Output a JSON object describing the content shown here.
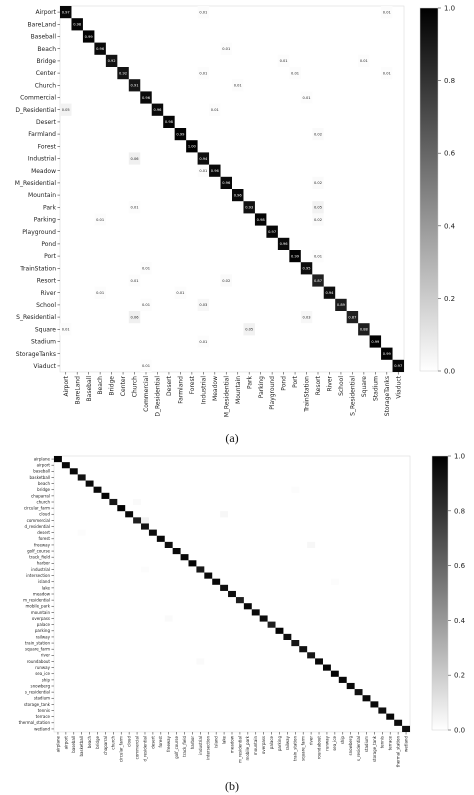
{
  "panel_labels": [
    "(a)",
    "(b)"
  ],
  "chart_data": [
    {
      "type": "heatmap",
      "caption": "(a)",
      "rows": [
        "Airport",
        "BareLand",
        "Baseball",
        "Beach",
        "Bridge",
        "Center",
        "Church",
        "Commercial",
        "D_Residential",
        "Desert",
        "Farmland",
        "Forest",
        "Industrial",
        "Meadow",
        "M_Residential",
        "Mountain",
        "Park",
        "Parking",
        "Playground",
        "Pond",
        "Port",
        "TrainStation",
        "Resort",
        "River",
        "School",
        "S_Residential",
        "Square",
        "Stadium",
        "StorageTanks",
        "Viaduct"
      ],
      "columns": [
        "Airport",
        "BareLand",
        "Baseball",
        "Beach",
        "Bridge",
        "Center",
        "Church",
        "Commercial",
        "D_Residential",
        "Desert",
        "Farmland",
        "Forest",
        "Industrial",
        "Meadow",
        "M_Residential",
        "Mountain",
        "Park",
        "Parking",
        "Playground",
        "Pond",
        "Port",
        "TrainStation",
        "Resort",
        "River",
        "School",
        "S_Residential",
        "Square",
        "Stadium",
        "StorageTanks",
        "Viaduct"
      ],
      "diagonal": [
        0.97,
        0.98,
        0.99,
        0.96,
        0.92,
        0.92,
        0.91,
        0.96,
        0.96,
        0.98,
        0.99,
        1.0,
        0.94,
        0.96,
        0.96,
        0.96,
        0.93,
        0.98,
        0.97,
        0.96,
        0.99,
        0.95,
        0.87,
        0.94,
        0.89,
        0.87,
        0.88,
        0.99,
        0.99,
        0.97
      ],
      "off_diagonal": [
        [
          0,
          12,
          0.01
        ],
        [
          0,
          28,
          0.01
        ],
        [
          3,
          14,
          0.01
        ],
        [
          4,
          19,
          0.01
        ],
        [
          4,
          26,
          0.01
        ],
        [
          5,
          12,
          0.01
        ],
        [
          5,
          20,
          0.01
        ],
        [
          5,
          28,
          0.01
        ],
        [
          6,
          15,
          0.01
        ],
        [
          7,
          21,
          0.01
        ],
        [
          8,
          0,
          0.05
        ],
        [
          8,
          13,
          0.01
        ],
        [
          10,
          22,
          0.02
        ],
        [
          12,
          6,
          0.06
        ],
        [
          13,
          12,
          0.01
        ],
        [
          14,
          22,
          0.02
        ],
        [
          16,
          6,
          0.01
        ],
        [
          16,
          22,
          0.05
        ],
        [
          17,
          3,
          0.01
        ],
        [
          17,
          22,
          0.02
        ],
        [
          20,
          22,
          0.01
        ],
        [
          21,
          7,
          0.01
        ],
        [
          22,
          6,
          0.01
        ],
        [
          22,
          14,
          0.02
        ],
        [
          23,
          3,
          0.01
        ],
        [
          23,
          10,
          0.01
        ],
        [
          24,
          7,
          0.01
        ],
        [
          24,
          12,
          0.03
        ],
        [
          25,
          6,
          0.06
        ],
        [
          25,
          21,
          0.03
        ],
        [
          26,
          0,
          0.01
        ],
        [
          26,
          16,
          0.05
        ],
        [
          27,
          12,
          0.01
        ],
        [
          29,
          7,
          0.01
        ]
      ],
      "colorbar": {
        "ticks": [
          "1.0",
          "0.8",
          "0.6",
          "0.4",
          "0.2",
          "0.0"
        ]
      }
    },
    {
      "type": "heatmap",
      "caption": "(b)",
      "rows": [
        "airplane",
        "airport",
        "baseball",
        "basketball",
        "beach",
        "bridge",
        "chaparral",
        "church",
        "circular_farm",
        "cloud",
        "commercial",
        "d_residential",
        "desert",
        "forest",
        "freeway",
        "golf_course",
        "track_field",
        "harbor",
        "industrial",
        "intersection",
        "island",
        "lake",
        "meadow",
        "m_residential",
        "mobile_park",
        "mountain",
        "overpass",
        "palace",
        "parking",
        "railway",
        "train_station",
        "square_farm",
        "river",
        "roundabout",
        "runway",
        "sea_ice",
        "ship",
        "snowberg",
        "s_residential",
        "stadium",
        "storage_tank",
        "tennis",
        "terrace",
        "thermal_station",
        "wetland"
      ],
      "columns": [
        "airplane",
        "airport",
        "baseball",
        "basketball",
        "beach",
        "bridge",
        "chaparral",
        "church",
        "circular_farm",
        "cloud",
        "commercial",
        "d_residential",
        "desert",
        "forest",
        "freeway",
        "golf_course",
        "track_field",
        "harbor",
        "industrial",
        "intersection",
        "island",
        "lake",
        "meadow",
        "m_residential",
        "mobile_park",
        "mountain",
        "overpass",
        "palace",
        "parking",
        "railway",
        "train_station",
        "square_farm",
        "river",
        "roundabout",
        "runway",
        "sea_ice",
        "ship",
        "snowberg",
        "s_residential",
        "stadium",
        "storage_tank",
        "tennis",
        "terrace",
        "thermal_station",
        "wetland"
      ],
      "diagonal": [
        0.98,
        0.96,
        0.97,
        0.93,
        0.96,
        0.96,
        0.98,
        0.9,
        0.99,
        0.97,
        0.88,
        0.93,
        0.95,
        0.97,
        0.94,
        0.96,
        0.97,
        0.98,
        0.9,
        0.96,
        0.97,
        0.94,
        0.94,
        0.88,
        0.97,
        0.96,
        0.95,
        0.88,
        0.99,
        0.94,
        0.91,
        0.93,
        0.91,
        0.97,
        0.98,
        0.99,
        0.97,
        0.96,
        0.93,
        0.96,
        0.96,
        0.94,
        0.97,
        0.95,
        0.94
      ],
      "off_diagonal": [
        [
          9,
          21,
          0.03
        ],
        [
          14,
          32,
          0.03
        ],
        [
          5,
          30,
          0.01
        ],
        [
          10,
          11,
          0.05
        ],
        [
          12,
          3,
          0.01
        ],
        [
          20,
          35,
          0.01
        ],
        [
          26,
          14,
          0.02
        ],
        [
          33,
          18,
          0.02
        ],
        [
          7,
          10,
          0.02
        ],
        [
          18,
          11,
          0.01
        ]
      ],
      "colorbar": {
        "ticks": [
          "1.0",
          "0.8",
          "0.6",
          "0.4",
          "0.2",
          "0.0"
        ]
      }
    }
  ]
}
